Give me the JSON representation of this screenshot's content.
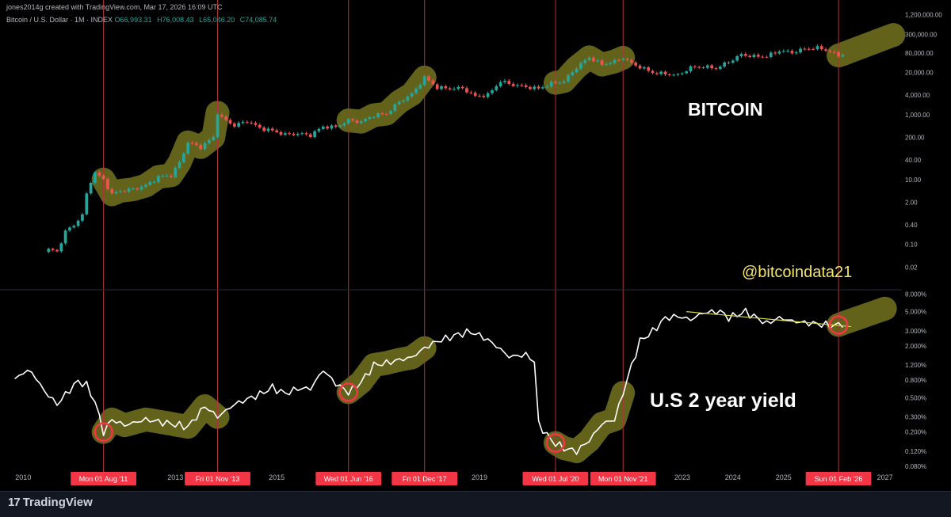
{
  "header": {
    "credit": "jones2014g created with TradingView.com, Mar 17, 2026 16:09 UTC",
    "symbol": "Bitcoin / U.S. Dollar · 1M · INDEX",
    "open": "O66,993.31",
    "high": "H76,008.43",
    "low": "L65,046.20",
    "close": "C74,085.74"
  },
  "footer": {
    "brand": "TradingView",
    "brand_mark": "17"
  },
  "annotations": {
    "bitcoin_label": "BITCOIN",
    "yield_label": "U.S 2 year yield",
    "handle": "@bitcoindata21"
  },
  "colors": {
    "up": "#26a69a",
    "down": "#ef5350",
    "line": "#ffffff",
    "highlight": "#6b6a1c",
    "vline": "#b2323c",
    "date_badge": "#f23645",
    "handle": "#f5e56b",
    "trend": "#d6d84a"
  },
  "chart_data": [
    {
      "type": "candlestick",
      "series_name": "Bitcoin / U.S. Dollar",
      "y_scale": "log",
      "y_ticks": [
        "1,200,000.00",
        "300,000.00",
        "80,000.00",
        "20,000.00",
        "4,000.00",
        "1,000.00",
        "200.00",
        "40.00",
        "10.00",
        "2.00",
        "0.40",
        "0.10",
        "0.02"
      ],
      "y_tick_values": [
        1200000,
        300000,
        80000,
        20000,
        4000,
        1000,
        200,
        40,
        10,
        2,
        0.4,
        0.1,
        0.02
      ],
      "ylim": [
        0.005,
        1400000
      ],
      "x_range": [
        "2009-09",
        "2027-05"
      ],
      "approx_monthly_close": [
        [
          "2010-07",
          0.07
        ],
        [
          "2010-09",
          0.06
        ],
        [
          "2010-11",
          0.25
        ],
        [
          "2011-01",
          0.4
        ],
        [
          "2011-03",
          0.8
        ],
        [
          "2011-04",
          3.5
        ],
        [
          "2011-05",
          9
        ],
        [
          "2011-06",
          16
        ],
        [
          "2011-08",
          10
        ],
        [
          "2011-10",
          3.5
        ],
        [
          "2011-12",
          4.5
        ],
        [
          "2012-03",
          5
        ],
        [
          "2012-06",
          6.5
        ],
        [
          "2012-09",
          12
        ],
        [
          "2012-12",
          13.5
        ],
        [
          "2013-02",
          33
        ],
        [
          "2013-04",
          140
        ],
        [
          "2013-07",
          100
        ],
        [
          "2013-10",
          200
        ],
        [
          "2013-11",
          1150
        ],
        [
          "2013-12",
          800
        ],
        [
          "2014-03",
          460
        ],
        [
          "2014-06",
          640
        ],
        [
          "2014-09",
          390
        ],
        [
          "2014-12",
          320
        ],
        [
          "2015-03",
          245
        ],
        [
          "2015-06",
          260
        ],
        [
          "2015-09",
          236
        ],
        [
          "2015-12",
          430
        ],
        [
          "2016-03",
          416
        ],
        [
          "2016-06",
          670
        ],
        [
          "2016-09",
          609
        ],
        [
          "2016-12",
          963
        ],
        [
          "2017-03",
          1080
        ],
        [
          "2017-06",
          2500
        ],
        [
          "2017-09",
          4300
        ],
        [
          "2017-12",
          14000
        ],
        [
          "2018-03",
          6900
        ],
        [
          "2018-06",
          6400
        ],
        [
          "2018-09",
          6600
        ],
        [
          "2018-12",
          3700
        ],
        [
          "2019-03",
          4100
        ],
        [
          "2019-06",
          10800
        ],
        [
          "2019-09",
          8300
        ],
        [
          "2019-12",
          7200
        ],
        [
          "2020-03",
          6400
        ],
        [
          "2020-06",
          9100
        ],
        [
          "2020-09",
          10800
        ],
        [
          "2020-12",
          29000
        ],
        [
          "2021-03",
          58800
        ],
        [
          "2021-06",
          35000
        ],
        [
          "2021-09",
          43800
        ],
        [
          "2021-11",
          57000
        ],
        [
          "2022-01",
          38500
        ],
        [
          "2022-06",
          19900
        ],
        [
          "2022-12",
          16500
        ],
        [
          "2023-03",
          28500
        ],
        [
          "2023-06",
          30500
        ],
        [
          "2023-09",
          27000
        ],
        [
          "2023-12",
          42300
        ],
        [
          "2024-03",
          71300
        ],
        [
          "2024-06",
          62700
        ],
        [
          "2024-09",
          63300
        ],
        [
          "2024-12",
          93400
        ],
        [
          "2025-03",
          82500
        ],
        [
          "2025-06",
          107000
        ],
        [
          "2025-09",
          114000
        ],
        [
          "2025-10",
          110000
        ],
        [
          "2025-12",
          87000
        ],
        [
          "2026-02",
          67000
        ],
        [
          "2026-03",
          74085.74
        ]
      ]
    },
    {
      "type": "line",
      "series_name": "U.S 2 year yield",
      "y_scale": "log",
      "y_ticks": [
        "8.000%",
        "5.000%",
        "3.000%",
        "2.000%",
        "1.200%",
        "0.800%",
        "0.500%",
        "0.300%",
        "0.200%",
        "0.120%",
        "0.080%"
      ],
      "y_tick_values": [
        8,
        5,
        3,
        2,
        1.2,
        0.8,
        0.5,
        0.3,
        0.2,
        0.12,
        0.08
      ],
      "ylim": [
        0.072,
        8.6
      ],
      "x_range": [
        "2009-09",
        "2027-05"
      ],
      "approx_values": [
        [
          "2009-11",
          0.8
        ],
        [
          "2010-01",
          1.0
        ],
        [
          "2010-03",
          1.0
        ],
        [
          "2010-06",
          0.6
        ],
        [
          "2010-09",
          0.42
        ],
        [
          "2010-12",
          0.62
        ],
        [
          "2011-02",
          0.78
        ],
        [
          "2011-04",
          0.7
        ],
        [
          "2011-06",
          0.45
        ],
        [
          "2011-08",
          0.2
        ],
        [
          "2011-10",
          0.28
        ],
        [
          "2012-01",
          0.24
        ],
        [
          "2012-06",
          0.28
        ],
        [
          "2012-12",
          0.25
        ],
        [
          "2013-04",
          0.23
        ],
        [
          "2013-08",
          0.4
        ],
        [
          "2013-11",
          0.3
        ],
        [
          "2014-03",
          0.42
        ],
        [
          "2014-09",
          0.55
        ],
        [
          "2014-12",
          0.66
        ],
        [
          "2015-03",
          0.56
        ],
        [
          "2015-06",
          0.64
        ],
        [
          "2015-09",
          0.64
        ],
        [
          "2015-12",
          1.05
        ],
        [
          "2016-03",
          0.73
        ],
        [
          "2016-06",
          0.58
        ],
        [
          "2016-09",
          0.76
        ],
        [
          "2016-12",
          1.2
        ],
        [
          "2017-03",
          1.27
        ],
        [
          "2017-06",
          1.38
        ],
        [
          "2017-09",
          1.47
        ],
        [
          "2017-12",
          1.89
        ],
        [
          "2018-03",
          2.27
        ],
        [
          "2018-06",
          2.53
        ],
        [
          "2018-09",
          2.81
        ],
        [
          "2018-11",
          2.92
        ],
        [
          "2019-02",
          2.52
        ],
        [
          "2019-05",
          2.0
        ],
        [
          "2019-08",
          1.5
        ],
        [
          "2019-12",
          1.58
        ],
        [
          "2020-02",
          1.33
        ],
        [
          "2020-03",
          0.25
        ],
        [
          "2020-06",
          0.16
        ],
        [
          "2020-09",
          0.13
        ],
        [
          "2020-12",
          0.12
        ],
        [
          "2021-03",
          0.16
        ],
        [
          "2021-06",
          0.25
        ],
        [
          "2021-09",
          0.28
        ],
        [
          "2021-11",
          0.57
        ],
        [
          "2022-01",
          1.18
        ],
        [
          "2022-03",
          2.28
        ],
        [
          "2022-06",
          2.95
        ],
        [
          "2022-09",
          4.22
        ],
        [
          "2022-12",
          4.43
        ],
        [
          "2023-03",
          4.03
        ],
        [
          "2023-06",
          4.87
        ],
        [
          "2023-10",
          5.05
        ],
        [
          "2023-12",
          4.25
        ],
        [
          "2024-04",
          5.0
        ],
        [
          "2024-09",
          3.64
        ],
        [
          "2024-12",
          4.24
        ],
        [
          "2025-03",
          3.89
        ],
        [
          "2025-06",
          3.72
        ],
        [
          "2025-09",
          3.61
        ],
        [
          "2025-12",
          3.47
        ],
        [
          "2026-02",
          3.5
        ],
        [
          "2026-03",
          3.66
        ]
      ]
    }
  ],
  "x_axis_ticks": [
    "2010",
    "2013",
    "2015",
    "2019",
    "2023",
    "2024",
    "2025",
    "2027"
  ],
  "x_axis_tick_dates": [
    "2010-01",
    "2013-01",
    "2015-01",
    "2019-01",
    "2023-01",
    "2024-01",
    "2025-01",
    "2027-01"
  ],
  "x_axis_partial_ticks": [
    {
      "label": "20",
      "date": "2012-01"
    },
    {
      "label": "20",
      "date": "2016-01"
    },
    {
      "label": "17",
      "date": "2017-01"
    },
    {
      "label": "20",
      "date": "2020-01"
    },
    {
      "label": "21",
      "date": "2021-01"
    }
  ],
  "markers": [
    {
      "date": "2011-08",
      "label": "Mon 01 Aug '11"
    },
    {
      "date": "2013-11",
      "label": "Fri 01 Nov '13"
    },
    {
      "date": "2016-06",
      "label": "Wed 01 Jun '16"
    },
    {
      "date": "2017-12",
      "label": "Fri 01 Dec '17"
    },
    {
      "date": "2020-07",
      "label": "Wed 01 Jul '20"
    },
    {
      "date": "2021-11",
      "label": "Mon 01 Nov '21"
    },
    {
      "date": "2026-02",
      "label": "Sun 01 Feb '26"
    }
  ],
  "btc_highlights": [
    [
      "2011-08",
      "2013-11"
    ],
    [
      "2016-06",
      "2017-12"
    ],
    [
      "2020-07",
      "2021-11"
    ],
    [
      "2026-02",
      "2027-03"
    ]
  ],
  "yield_highlights": [
    [
      "2011-08",
      "2013-11"
    ],
    [
      "2016-06",
      "2017-12"
    ],
    [
      "2020-07",
      "2021-11"
    ],
    [
      "2026-02",
      "2027-01"
    ]
  ],
  "yield_circles": [
    "2011-08",
    "2016-06",
    "2020-07",
    "2026-02"
  ],
  "yield_trendline": [
    [
      "2023-02",
      5.0
    ],
    [
      "2026-05",
      3.35
    ]
  ]
}
